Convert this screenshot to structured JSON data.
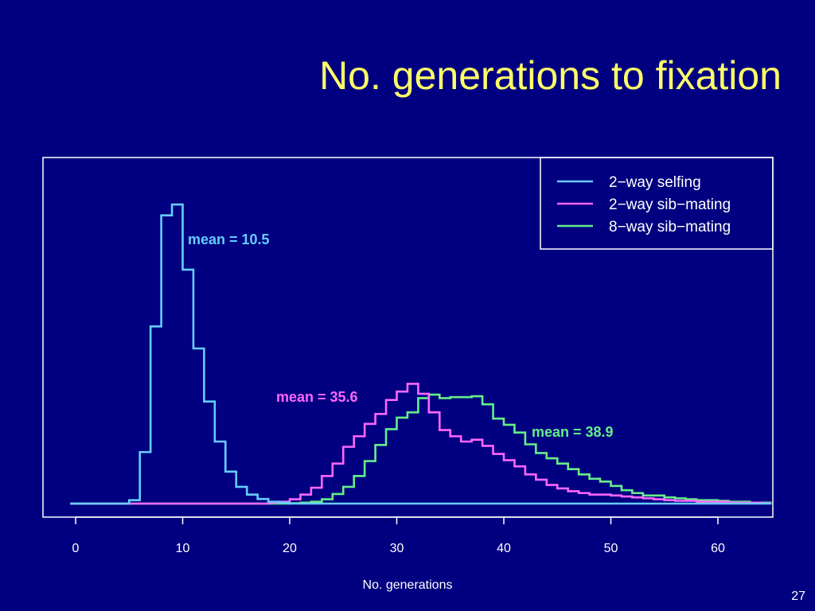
{
  "slide": {
    "title": "No. generations to fixation",
    "page_number": "27"
  },
  "colors": {
    "background": "#000080",
    "title": "#ffff66",
    "frame": "#ffffff",
    "selfing": "#66ccff",
    "sib2": "#ff66ff",
    "sib8": "#66ee88"
  },
  "chart_data": {
    "type": "line",
    "xlabel": "No. generations",
    "ylabel": "",
    "xlim": [
      -0.5,
      65
    ],
    "ylim": [
      0,
      1
    ],
    "x_ticks": [
      0,
      10,
      20,
      30,
      40,
      50,
      60
    ],
    "y_axis_shown": false,
    "step": true,
    "bin_width": 1,
    "bin_start": 0,
    "legend": {
      "position": "top-right",
      "entries": [
        "2−way selfing",
        "2−way sib−mating",
        "8−way sib−mating"
      ]
    },
    "series": [
      {
        "name": "2−way selfing",
        "color": "#66ccff",
        "mean_label": "mean = 10.5",
        "values": [
          0,
          0,
          0,
          0,
          0,
          0.011,
          0.166,
          0.571,
          0.929,
          0.964,
          0.754,
          0.5,
          0.329,
          0.2,
          0.103,
          0.054,
          0.029,
          0.015,
          0.006,
          0.003,
          0,
          0,
          0,
          0,
          0,
          0,
          0,
          0,
          0,
          0,
          0,
          0,
          0,
          0,
          0,
          0,
          0,
          0,
          0,
          0,
          0,
          0,
          0,
          0,
          0,
          0,
          0,
          0,
          0,
          0,
          0,
          0,
          0,
          0,
          0,
          0,
          0,
          0,
          0,
          0,
          0,
          0,
          0,
          0,
          0
        ]
      },
      {
        "name": "2−way sib−mating",
        "color": "#ff66ff",
        "mean_label": "mean = 35.6",
        "values": [
          0,
          0,
          0,
          0,
          0,
          0,
          0,
          0,
          0,
          0,
          0,
          0,
          0,
          0,
          0,
          0,
          0,
          0,
          0.003,
          0.006,
          0.014,
          0.029,
          0.051,
          0.089,
          0.129,
          0.183,
          0.217,
          0.257,
          0.289,
          0.334,
          0.361,
          0.386,
          0.354,
          0.294,
          0.237,
          0.217,
          0.2,
          0.206,
          0.186,
          0.16,
          0.14,
          0.12,
          0.094,
          0.077,
          0.06,
          0.049,
          0.04,
          0.034,
          0.029,
          0.029,
          0.026,
          0.023,
          0.02,
          0.017,
          0.014,
          0.011,
          0.009,
          0.009,
          0.006,
          0.006,
          0.006,
          0.003,
          0.003,
          0.003,
          0.001
        ]
      },
      {
        "name": "8−way sib−mating",
        "color": "#66ee88",
        "mean_label": "mean = 38.9",
        "values": [
          0,
          0,
          0,
          0,
          0,
          0,
          0,
          0,
          0,
          0,
          0,
          0,
          0,
          0,
          0,
          0,
          0,
          0,
          0,
          0,
          0.001,
          0.003,
          0.006,
          0.014,
          0.031,
          0.054,
          0.089,
          0.137,
          0.189,
          0.24,
          0.277,
          0.294,
          0.34,
          0.351,
          0.34,
          0.343,
          0.343,
          0.346,
          0.32,
          0.274,
          0.254,
          0.229,
          0.191,
          0.163,
          0.146,
          0.129,
          0.111,
          0.094,
          0.08,
          0.071,
          0.057,
          0.043,
          0.034,
          0.026,
          0.026,
          0.02,
          0.017,
          0.014,
          0.011,
          0.011,
          0.009,
          0.006,
          0.006,
          0.003,
          0.003
        ]
      }
    ]
  }
}
